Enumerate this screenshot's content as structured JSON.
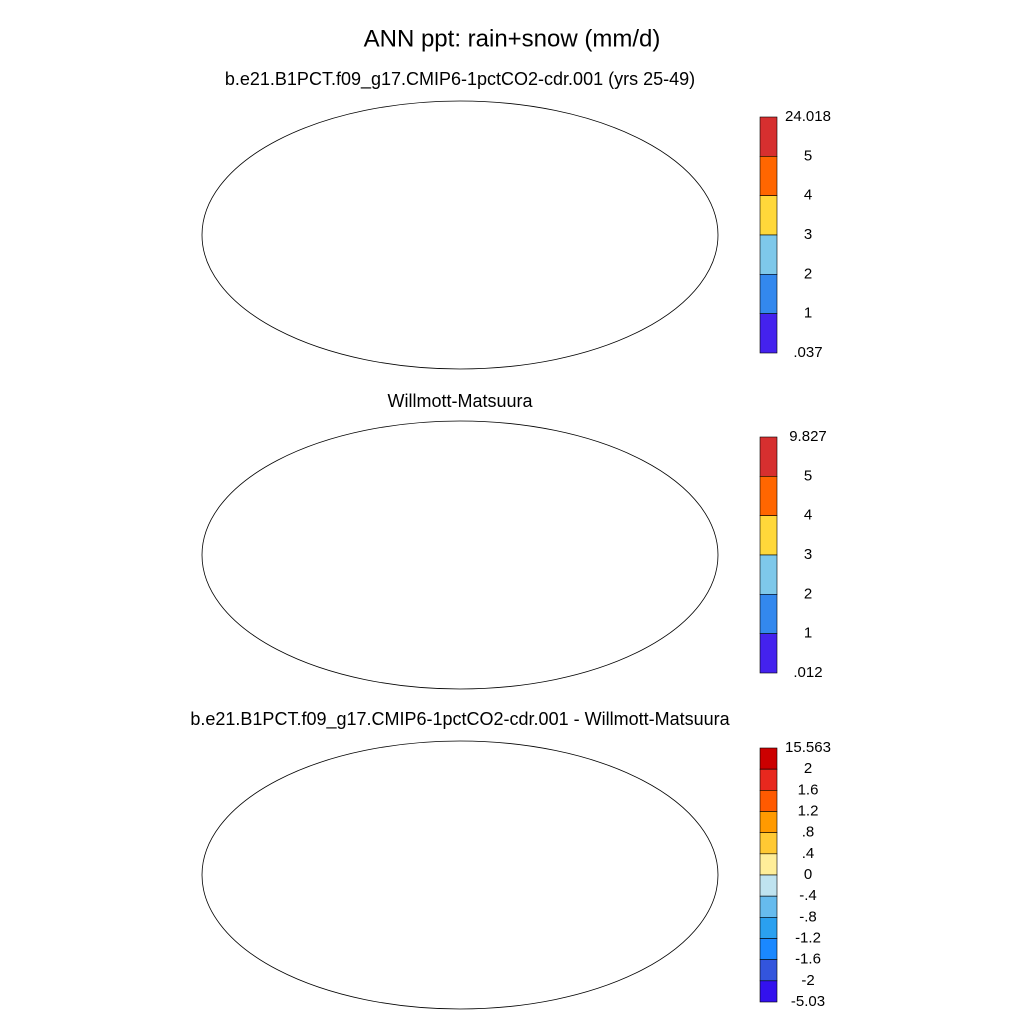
{
  "title": "ANN ppt: rain+snow (mm/d)",
  "panels": [
    {
      "subtitle": "b.e21.B1PCT.f09_g17.CMIP6-1pctCO2-cdr.001 (yrs 25-49)",
      "colorbar": {
        "labels": [
          "24.018",
          "5",
          "4",
          "3",
          "2",
          "1",
          ".037"
        ],
        "colors": [
          "#d62f2f",
          "#ff6600",
          "#ffd83a",
          "#7ec8ea",
          "#3388ee",
          "#4422ee"
        ]
      }
    },
    {
      "subtitle": "Willmott-Matsuura",
      "colorbar": {
        "labels": [
          "9.827",
          "5",
          "4",
          "3",
          "2",
          "1",
          ".012"
        ],
        "colors": [
          "#d62f2f",
          "#ff6600",
          "#ffd83a",
          "#7ec8ea",
          "#3388ee",
          "#4422ee"
        ]
      }
    },
    {
      "subtitle": "b.e21.B1PCT.f09_g17.CMIP6-1pctCO2-cdr.001 - Willmott-Matsuura",
      "colorbar": {
        "labels": [
          "15.563",
          "2",
          "1.6",
          "1.2",
          ".8",
          ".4",
          "0",
          "-.4",
          "-.8",
          "-1.2",
          "-1.6",
          "-2",
          "-5.03"
        ],
        "colors": [
          "#cc0000",
          "#e8281e",
          "#ff5a00",
          "#ff9a00",
          "#ffc933",
          "#ffee99",
          "#bfe3f0",
          "#66bbee",
          "#2aa0f0",
          "#1a88ff",
          "#3355dd",
          "#3311ee"
        ]
      }
    }
  ]
}
